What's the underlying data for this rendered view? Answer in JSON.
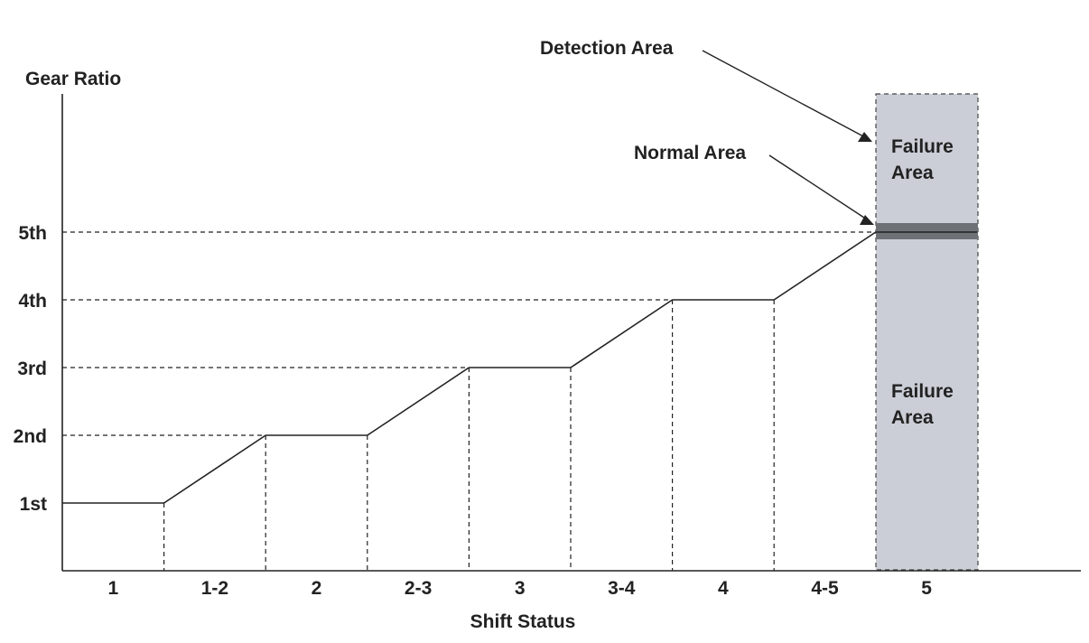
{
  "chart_data": {
    "type": "line",
    "xlabel": "Shift Status",
    "ylabel": "Gear Ratio",
    "categories": [
      "1",
      "1-2",
      "2",
      "2-3",
      "3",
      "3-4",
      "4",
      "4-5",
      "5"
    ],
    "y_levels": [
      "1st",
      "2nd",
      "3rd",
      "4th",
      "5th"
    ],
    "series": [
      {
        "values": [
          1,
          1.5,
          2,
          2.5,
          3,
          3.5,
          4,
          4.5,
          5
        ]
      }
    ],
    "grid": false,
    "regions": {
      "detection_label": "Detection Area",
      "normal_label": "Normal Area",
      "failure_label_lines": [
        "Failure",
        "Area"
      ]
    },
    "colors": {
      "line": "#222222",
      "region_fill": "#cbced6",
      "normal_band": "#6e7175"
    }
  }
}
